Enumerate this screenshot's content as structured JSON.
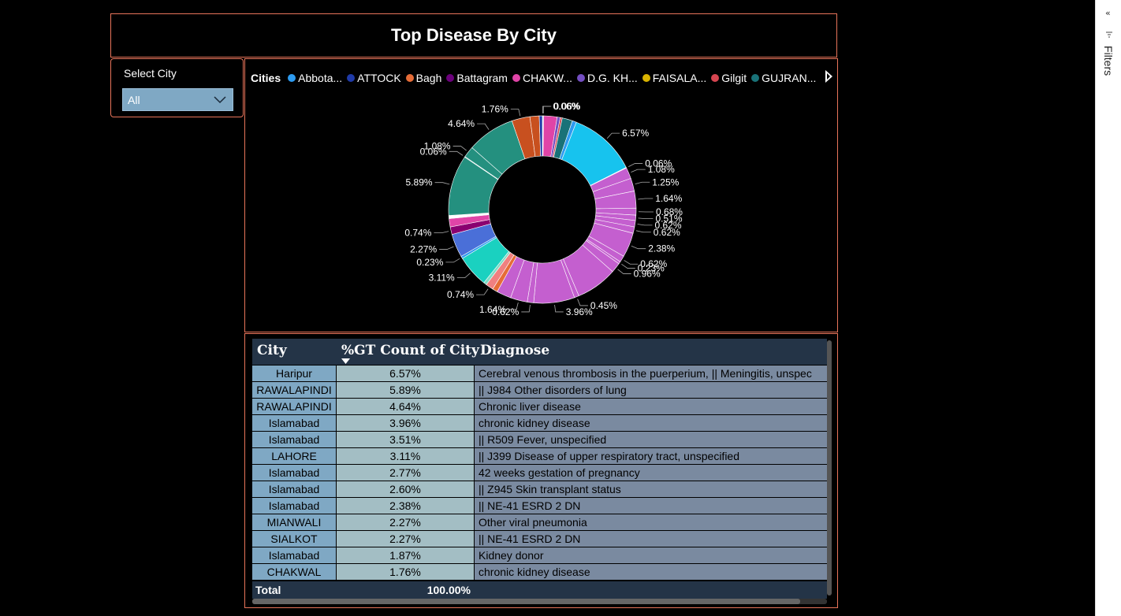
{
  "report": {
    "title": "Top Disease By City"
  },
  "slicer": {
    "label": "Select City",
    "value": "All"
  },
  "filters_pane": {
    "label": "Filters",
    "collapse_glyph": "«"
  },
  "colors": {
    "panel_border": "#e8745a",
    "background": "#000000",
    "header": "#243447"
  },
  "legend": {
    "title": "Cities",
    "items": [
      {
        "label": "Abbota...",
        "color": "#2d9bf0"
      },
      {
        "label": "ATTOCK",
        "color": "#1f3aa8"
      },
      {
        "label": "Bagh",
        "color": "#e66c37"
      },
      {
        "label": "Battagram",
        "color": "#6b007b"
      },
      {
        "label": "CHAKW...",
        "color": "#e044a7"
      },
      {
        "label": "D.G. KH...",
        "color": "#744ec2"
      },
      {
        "label": "FAISALA...",
        "color": "#d9b300"
      },
      {
        "label": "Gilgit",
        "color": "#d64550"
      },
      {
        "label": "GUJRAN...",
        "color": "#197278"
      }
    ]
  },
  "chart_data": {
    "type": "pie",
    "variant": "donut",
    "legend_title": "Cities",
    "slices": [
      {
        "label": "0.06%",
        "value": 0.06,
        "color": "#2d9bf0"
      },
      {
        "label": "0.06%",
        "value": 0.06,
        "color": "#1f3aa8"
      },
      {
        "label": "",
        "value": 1.3,
        "color": "#e044a7"
      },
      {
        "label": "",
        "value": 0.3,
        "color": "#744ec2"
      },
      {
        "label": "",
        "value": 0.2,
        "color": "#d64550"
      },
      {
        "label": "",
        "value": 1.0,
        "color": "#197278"
      },
      {
        "label": "",
        "value": 0.4,
        "color": "#2d9bf0"
      },
      {
        "label": "6.57%",
        "value": 6.57,
        "color": "#17c3ee"
      },
      {
        "label": "0.06%",
        "value": 0.06,
        "color": "#ffffff"
      },
      {
        "label": "1.08%",
        "value": 1.08,
        "color": "#c45fcf"
      },
      {
        "label": "1.25%",
        "value": 1.25,
        "color": "#c45fcf"
      },
      {
        "label": "1.64%",
        "value": 1.64,
        "color": "#c45fcf"
      },
      {
        "label": "0.68%",
        "value": 0.68,
        "color": "#c45fcf"
      },
      {
        "label": "0.51%",
        "value": 0.51,
        "color": "#c45fcf"
      },
      {
        "label": "0.62%",
        "value": 0.62,
        "color": "#c45fcf"
      },
      {
        "label": "0.62%",
        "value": 0.62,
        "color": "#c45fcf"
      },
      {
        "label": "2.38%",
        "value": 2.38,
        "color": "#c45fcf"
      },
      {
        "label": "0.62%",
        "value": 0.62,
        "color": "#c45fcf"
      },
      {
        "label": "0.23%",
        "value": 0.23,
        "color": "#c45fcf"
      },
      {
        "label": "0.96%",
        "value": 0.96,
        "color": "#c45fcf"
      },
      {
        "label": "",
        "value": 4.0,
        "color": "#c45fcf"
      },
      {
        "label": "0.45%",
        "value": 0.45,
        "color": "#c45fcf"
      },
      {
        "label": "3.96%",
        "value": 3.96,
        "color": "#c45fcf"
      },
      {
        "label": "0.62%",
        "value": 0.62,
        "color": "#c45fcf"
      },
      {
        "label": "1.64%",
        "value": 1.64,
        "color": "#c45fcf"
      },
      {
        "label": "",
        "value": 1.4,
        "color": "#c45fcf"
      },
      {
        "label": "",
        "value": 0.5,
        "color": "#e66c37"
      },
      {
        "label": "0.74%",
        "value": 0.74,
        "color": "#f08080"
      },
      {
        "label": "",
        "value": 0.3,
        "color": "#7fdcc6"
      },
      {
        "label": "3.11%",
        "value": 3.11,
        "color": "#1ad1c0"
      },
      {
        "label": "0.23%",
        "value": 0.23,
        "color": "#2d9bf0"
      },
      {
        "label": "2.27%",
        "value": 2.27,
        "color": "#4a6fd8"
      },
      {
        "label": "0.74%",
        "value": 0.74,
        "color": "#8a0070"
      },
      {
        "label": "",
        "value": 0.8,
        "color": "#e044a7"
      },
      {
        "label": "",
        "value": 0.3,
        "color": "#ffffff"
      },
      {
        "label": "5.89%",
        "value": 5.89,
        "color": "#24907f"
      },
      {
        "label": "0.06%",
        "value": 0.06,
        "color": "#24907f"
      },
      {
        "label": "1.08%",
        "value": 1.08,
        "color": "#24907f"
      },
      {
        "label": "4.64%",
        "value": 4.64,
        "color": "#24907f"
      },
      {
        "label": "1.76%",
        "value": 1.76,
        "color": "#c8501f"
      },
      {
        "label": "",
        "value": 0.9,
        "color": "#c8501f"
      },
      {
        "label": "",
        "value": 0.3,
        "color": "#1f3aa8"
      }
    ]
  },
  "table": {
    "columns": [
      "City",
      "%GT Count of City",
      "Diagnose"
    ],
    "sort_column": "%GT Count of City",
    "rows": [
      {
        "city": "Haripur",
        "pct": "6.57%",
        "diagnose": "Cerebral venous thrombosis in the puerperium, || Meningitis, unspec"
      },
      {
        "city": "RAWALAPINDI",
        "pct": "5.89%",
        "diagnose": "|| J984 Other disorders of lung"
      },
      {
        "city": "RAWALAPINDI",
        "pct": "4.64%",
        "diagnose": "Chronic liver disease"
      },
      {
        "city": "Islamabad",
        "pct": "3.96%",
        "diagnose": "chronic kidney disease"
      },
      {
        "city": "Islamabad",
        "pct": "3.51%",
        "diagnose": "|| R509 Fever, unspecified"
      },
      {
        "city": "LAHORE",
        "pct": "3.11%",
        "diagnose": "|| J399 Disease of upper respiratory tract, unspecified"
      },
      {
        "city": "Islamabad",
        "pct": "2.77%",
        "diagnose": "42 weeks gestation of pregnancy"
      },
      {
        "city": "Islamabad",
        "pct": "2.60%",
        "diagnose": "|| Z945 Skin transplant status"
      },
      {
        "city": "Islamabad",
        "pct": "2.38%",
        "diagnose": "|| NE-41 ESRD 2 DN"
      },
      {
        "city": "MIANWALI",
        "pct": "2.27%",
        "diagnose": "Other viral pneumonia"
      },
      {
        "city": "SIALKOT",
        "pct": "2.27%",
        "diagnose": "|| NE-41 ESRD 2 DN"
      },
      {
        "city": "Islamabad",
        "pct": "1.87%",
        "diagnose": "Kidney donor"
      },
      {
        "city": "CHAKWAL",
        "pct": "1.76%",
        "diagnose": "chronic kidney disease"
      }
    ],
    "total": {
      "label": "Total",
      "pct": "100.00%"
    }
  }
}
